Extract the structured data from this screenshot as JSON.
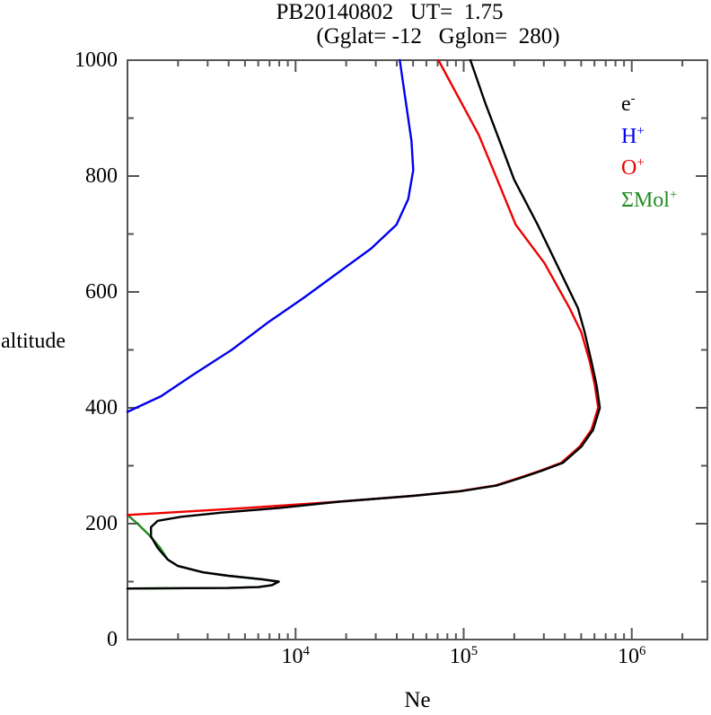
{
  "chart_data": {
    "type": "line",
    "title": "PB20140802   UT=  1.75",
    "subtitle": "(Gglat= -12   Gglon=  280)",
    "xlabel": "Ne",
    "ylabel": "altitude",
    "x_scale": "log10",
    "x_log_range": [
      3.0,
      6.45
    ],
    "ylim": [
      0,
      1000
    ],
    "grid": false,
    "legend_position": "top-right-inside",
    "background_color": "#ffffff",
    "frame_color": "#555555",
    "text_color": "#000000",
    "x_major_ticks": [
      {
        "log": 4,
        "label_base": "10",
        "label_exp": "4"
      },
      {
        "log": 5,
        "label_base": "10",
        "label_exp": "5"
      },
      {
        "log": 6,
        "label_base": "10",
        "label_exp": "6"
      }
    ],
    "x_minor_tick_logs": [
      3.301,
      3.477,
      3.602,
      3.699,
      3.778,
      3.845,
      3.903,
      3.954,
      4.301,
      4.477,
      4.602,
      4.699,
      4.778,
      4.845,
      4.903,
      4.954,
      5.301,
      5.477,
      5.602,
      5.699,
      5.778,
      5.845,
      5.903,
      5.954,
      6.301
    ],
    "y_major_ticks": [
      0,
      200,
      400,
      600,
      800,
      1000
    ],
    "y_minor_ticks": [
      100,
      300,
      500,
      700,
      900
    ],
    "series": [
      {
        "key": "mol-plus",
        "name": "ΣMol+",
        "label_base": "ΣMol",
        "label_sup": "+",
        "color": "#228b22",
        "points_log10Ne_alt": [
          [
            3.0,
            215
          ],
          [
            3.06,
            200
          ],
          [
            3.13,
            180
          ],
          [
            3.19,
            160
          ],
          [
            3.24,
            138
          ],
          [
            3.3,
            127
          ],
          [
            3.45,
            116
          ],
          [
            3.6,
            110
          ],
          [
            3.8,
            104
          ],
          [
            3.9,
            100
          ],
          [
            3.86,
            94
          ],
          [
            3.78,
            90.5
          ],
          [
            3.6,
            89
          ],
          [
            3.0,
            88
          ]
        ]
      },
      {
        "key": "h-plus",
        "name": "H+",
        "label_base": "H",
        "label_sup": "+",
        "color": "#0000ee",
        "points_log10Ne_alt": [
          [
            3.0,
            393
          ],
          [
            3.2,
            420
          ],
          [
            3.39,
            457
          ],
          [
            3.62,
            500
          ],
          [
            3.83,
            546
          ],
          [
            4.05,
            590
          ],
          [
            4.28,
            639
          ],
          [
            4.45,
            675
          ],
          [
            4.6,
            716
          ],
          [
            4.67,
            760
          ],
          [
            4.7,
            810
          ],
          [
            4.69,
            860
          ],
          [
            4.66,
            920
          ],
          [
            4.62,
            1000
          ]
        ]
      },
      {
        "key": "o-plus",
        "name": "O+",
        "label_base": "O",
        "label_sup": "+",
        "color": "#ee0000",
        "points_log10Ne_alt": [
          [
            3.0,
            215
          ],
          [
            3.3,
            220
          ],
          [
            3.7,
            227
          ],
          [
            4.26,
            238
          ],
          [
            4.7,
            248
          ],
          [
            4.97,
            256
          ],
          [
            5.19,
            266
          ],
          [
            5.33,
            279
          ],
          [
            5.46,
            292
          ],
          [
            5.58,
            305
          ],
          [
            5.69,
            333
          ],
          [
            5.76,
            362
          ],
          [
            5.8,
            400
          ],
          [
            5.78,
            440
          ],
          [
            5.75,
            480
          ],
          [
            5.7,
            530
          ],
          [
            5.63,
            572
          ],
          [
            5.48,
            650
          ],
          [
            5.31,
            716
          ],
          [
            5.2,
            794
          ],
          [
            5.09,
            871
          ],
          [
            4.85,
            1000
          ]
        ]
      },
      {
        "key": "electron",
        "name": "e-",
        "label_base": "e",
        "label_sup": "-",
        "color": "#000000",
        "points_log10Ne_alt": [
          [
            3.0,
            88
          ],
          [
            3.6,
            89
          ],
          [
            3.78,
            90.5
          ],
          [
            3.86,
            94
          ],
          [
            3.9,
            100
          ],
          [
            3.8,
            104
          ],
          [
            3.6,
            110
          ],
          [
            3.45,
            116
          ],
          [
            3.3,
            127
          ],
          [
            3.24,
            138
          ],
          [
            3.18,
            158
          ],
          [
            3.14,
            178
          ],
          [
            3.14,
            194
          ],
          [
            3.18,
            205
          ],
          [
            3.32,
            212
          ],
          [
            3.56,
            219
          ],
          [
            3.9,
            227
          ],
          [
            4.26,
            238
          ],
          [
            4.7,
            248
          ],
          [
            4.98,
            256
          ],
          [
            5.2,
            266
          ],
          [
            5.34,
            279
          ],
          [
            5.47,
            292
          ],
          [
            5.59,
            305
          ],
          [
            5.7,
            333
          ],
          [
            5.77,
            362
          ],
          [
            5.81,
            400
          ],
          [
            5.79,
            440
          ],
          [
            5.76,
            480
          ],
          [
            5.72,
            530
          ],
          [
            5.68,
            572
          ],
          [
            5.55,
            650
          ],
          [
            5.44,
            716
          ],
          [
            5.3,
            794
          ],
          [
            5.22,
            856
          ],
          [
            5.13,
            925
          ],
          [
            5.04,
            1000
          ]
        ]
      }
    ],
    "legend_order": [
      "electron",
      "h-plus",
      "o-plus",
      "mol-plus"
    ]
  }
}
